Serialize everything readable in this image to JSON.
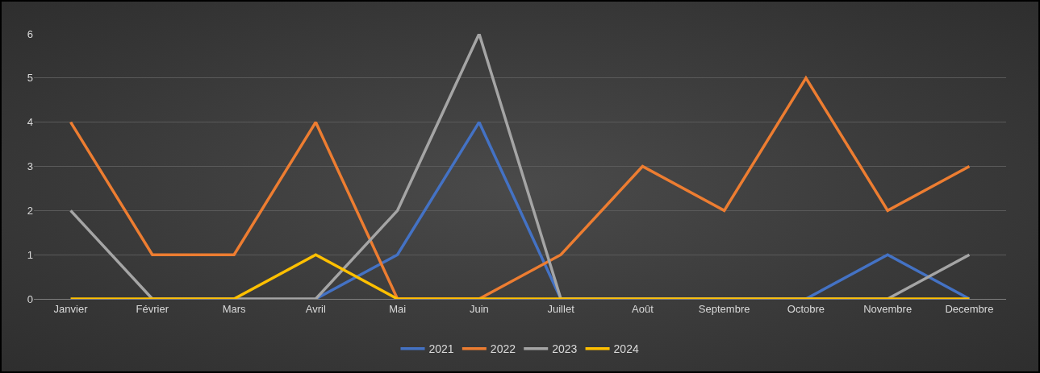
{
  "chart_data": {
    "type": "line",
    "categories": [
      "Janvier",
      "Février",
      "Mars",
      "Avril",
      "Mai",
      "Juin",
      "Juillet",
      "Août",
      "Septembre",
      "Octobre",
      "Novembre",
      "Decembre"
    ],
    "series": [
      {
        "name": "2021",
        "color": "#4472c4",
        "values": [
          null,
          null,
          null,
          0,
          1,
          4,
          0,
          0,
          0,
          0,
          1,
          0
        ]
      },
      {
        "name": "2022",
        "color": "#ed7d31",
        "values": [
          4,
          1,
          1,
          4,
          0,
          0,
          1,
          3,
          2,
          5,
          2,
          3
        ]
      },
      {
        "name": "2023",
        "color": "#a5a5a5",
        "values": [
          2,
          0,
          0,
          0,
          2,
          6,
          0,
          0,
          0,
          0,
          0,
          1
        ]
      },
      {
        "name": "2024",
        "color": "#ffc000",
        "values": [
          0,
          0,
          0,
          1,
          0,
          0,
          0,
          0,
          0,
          0,
          0,
          0
        ]
      }
    ],
    "ylim": [
      0,
      6
    ],
    "yticks": [
      0,
      1,
      2,
      3,
      4,
      5,
      6
    ],
    "grid": "y",
    "legend": "bottom",
    "marker": "none",
    "line_style": "solid"
  }
}
